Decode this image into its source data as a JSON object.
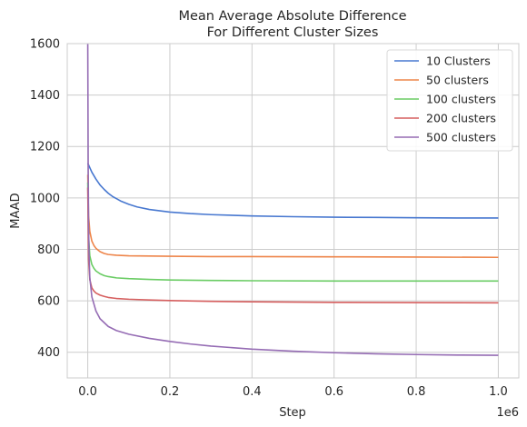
{
  "chart_data": {
    "type": "line",
    "title_lines": [
      "Mean Average Absolute Difference",
      "For Different Cluster Sizes"
    ],
    "xlabel": "Step",
    "ylabel": "MAAD",
    "x_offset_text": "1e6",
    "xlim": [
      -50000,
      1050000
    ],
    "ylim": [
      300,
      1600
    ],
    "x_ticks": [
      0,
      200000,
      400000,
      600000,
      800000,
      1000000
    ],
    "x_tick_labels": [
      "0.0",
      "0.2",
      "0.4",
      "0.6",
      "0.8",
      "1.0"
    ],
    "y_ticks": [
      400,
      600,
      800,
      1000,
      1200,
      1400,
      1600
    ],
    "y_tick_labels": [
      "400",
      "600",
      "800",
      "1000",
      "1200",
      "1400",
      "1600"
    ],
    "grid": true,
    "legend_position": "top-right",
    "series": [
      {
        "name": "10 Clusters",
        "color": "#4878d0",
        "x": [
          0,
          10000,
          20000,
          30000,
          40000,
          50000,
          60000,
          80000,
          100000,
          120000,
          150000,
          200000,
          250000,
          300000,
          400000,
          500000,
          600000,
          700000,
          800000,
          900000,
          1000000
        ],
        "y": [
          1135,
          1100,
          1073,
          1050,
          1033,
          1018,
          1006,
          988,
          975,
          965,
          955,
          945,
          939,
          935,
          930,
          927,
          925,
          924,
          923,
          922,
          922
        ]
      },
      {
        "name": "50 clusters",
        "color": "#ee854a",
        "x": [
          0,
          2000,
          5000,
          10000,
          15000,
          20000,
          30000,
          40000,
          50000,
          70000,
          100000,
          150000,
          200000,
          300000,
          400000,
          600000,
          800000,
          1000000
        ],
        "y": [
          1090,
          930,
          870,
          832,
          815,
          804,
          791,
          784,
          780,
          777,
          775,
          774,
          773,
          772,
          772,
          771,
          770,
          769
        ]
      },
      {
        "name": "100 clusters",
        "color": "#6acc64",
        "x": [
          0,
          2000,
          5000,
          10000,
          15000,
          20000,
          30000,
          40000,
          50000,
          70000,
          100000,
          150000,
          200000,
          300000,
          400000,
          600000,
          800000,
          1000000
        ],
        "y": [
          1060,
          850,
          775,
          741,
          726,
          716,
          705,
          698,
          694,
          689,
          686,
          683,
          681,
          679,
          678,
          677,
          677,
          677
        ]
      },
      {
        "name": "200 clusters",
        "color": "#d65f5f",
        "x": [
          0,
          2000,
          5000,
          10000,
          15000,
          20000,
          30000,
          40000,
          50000,
          70000,
          100000,
          150000,
          200000,
          300000,
          400000,
          600000,
          800000,
          1000000
        ],
        "y": [
          1040,
          760,
          682,
          650,
          638,
          630,
          622,
          617,
          613,
          609,
          606,
          603,
          601,
          598,
          596,
          594,
          593,
          592
        ]
      },
      {
        "name": "500 clusters",
        "color": "#956cb4",
        "x": [
          0,
          1000,
          2000,
          3000,
          5000,
          10000,
          20000,
          30000,
          50000,
          70000,
          100000,
          150000,
          200000,
          250000,
          300000,
          400000,
          500000,
          600000,
          700000,
          800000,
          900000,
          1000000
        ],
        "y": [
          1600,
          1150,
          900,
          790,
          690,
          615,
          560,
          530,
          500,
          484,
          470,
          454,
          442,
          432,
          424,
          412,
          404,
          398,
          394,
          391,
          389,
          388
        ]
      }
    ]
  }
}
